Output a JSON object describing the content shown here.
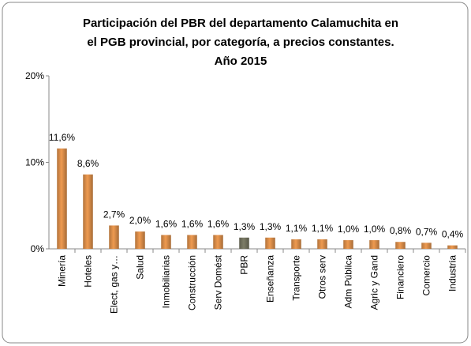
{
  "chart_data": {
    "type": "bar",
    "title": [
      "Participación del PBR del departamento  Calamuchita en",
      "el PGB provincial, por categoría, a precios constantes.",
      "Año 2015"
    ],
    "categories": [
      "Minería",
      "Hoteles",
      "Elect, gas y…",
      "Salud",
      "Inmobiliarias",
      "Construcción",
      "Serv Domést",
      "PBR",
      "Enseñanza",
      "Transporte",
      "Otros serv",
      "Adm Pública",
      "Agric y Gand",
      "Financiero",
      "Comercio",
      "Industria"
    ],
    "values": [
      11.6,
      8.6,
      2.7,
      2.0,
      1.6,
      1.6,
      1.6,
      1.3,
      1.3,
      1.1,
      1.1,
      1.0,
      1.0,
      0.8,
      0.7,
      0.4
    ],
    "value_labels": [
      "11,6%",
      "8,6%",
      "2,7%",
      "2,0%",
      "1,6%",
      "1,6%",
      "1,6%",
      "1,3%",
      "1,3%",
      "1,1%",
      "1,1%",
      "1,0%",
      "1,0%",
      "0,8%",
      "0,7%",
      "0,4%"
    ],
    "colors": [
      "#ee9a50",
      "#ee9a50",
      "#ee9a50",
      "#ee9a50",
      "#ee9a50",
      "#ee9a50",
      "#ee9a50",
      "#7d7d68",
      "#ee9a50",
      "#ee9a50",
      "#ee9a50",
      "#ee9a50",
      "#ee9a50",
      "#ee9a50",
      "#ee9a50",
      "#ee9a50"
    ],
    "ylim": [
      0,
      20
    ],
    "yticks": [
      {
        "value": 0,
        "label": "0%"
      },
      {
        "value": 10,
        "label": "10%"
      },
      {
        "value": 20,
        "label": "20%"
      }
    ]
  }
}
